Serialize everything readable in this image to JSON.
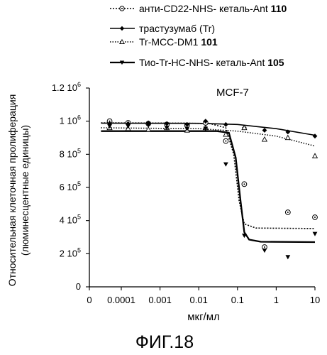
{
  "chart_data": {
    "type": "scatter",
    "panel_label": "MCF-7",
    "figure_caption": "ФИГ.18",
    "xlabel": "мкг/мл",
    "ylabel_line1": "Относительная клеточная пролиферация",
    "ylabel_line2": "(люминесцентные единицы)",
    "x_scale": "log",
    "x_ticks": [
      {
        "label": "0",
        "value": 1.5e-05
      },
      {
        "label": "0.0001",
        "value": 0.0001
      },
      {
        "label": "0.001",
        "value": 0.001
      },
      {
        "label": "0.01",
        "value": 0.01
      },
      {
        "label": "0.1",
        "value": 0.1
      },
      {
        "label": "1",
        "value": 1
      },
      {
        "label": "10",
        "value": 10
      }
    ],
    "ylim": [
      0,
      1200000
    ],
    "y_ticks": [
      {
        "mant": "0",
        "exp": "",
        "value": 0
      },
      {
        "mant": "2 10",
        "exp": "5",
        "value": 200000
      },
      {
        "mant": "4 10",
        "exp": "5",
        "value": 400000
      },
      {
        "mant": "6 10",
        "exp": "5",
        "value": 600000
      },
      {
        "mant": "8 10",
        "exp": "5",
        "value": 800000
      },
      {
        "mant": "1 10",
        "exp": "6",
        "value": 1000000
      },
      {
        "mant": "1.2 10",
        "exp": "6",
        "value": 1200000
      }
    ],
    "grid": false,
    "legend_position": "top",
    "series": [
      {
        "name": "анти-CD22-NHS- кеталь-Ant",
        "name_bold": "110",
        "marker": "circle-dot",
        "dash": "2,2",
        "points": [
          {
            "x": 5e-05,
            "y": 1000000
          },
          {
            "x": 0.00015,
            "y": 990000
          },
          {
            "x": 0.0005,
            "y": 985000
          },
          {
            "x": 0.0015,
            "y": 980000
          },
          {
            "x": 0.005,
            "y": 975000
          },
          {
            "x": 0.015,
            "y": 990000
          },
          {
            "x": 0.05,
            "y": 880000
          },
          {
            "x": 0.15,
            "y": 620000
          },
          {
            "x": 0.5,
            "y": 240000
          },
          {
            "x": 2,
            "y": 450000
          },
          {
            "x": 10,
            "y": 420000
          }
        ],
        "curve": [
          {
            "x": 3e-05,
            "y": 990000
          },
          {
            "x": 0.005,
            "y": 988000
          },
          {
            "x": 0.02,
            "y": 985000
          },
          {
            "x": 0.05,
            "y": 960000
          },
          {
            "x": 0.08,
            "y": 800000
          },
          {
            "x": 0.11,
            "y": 520000
          },
          {
            "x": 0.15,
            "y": 380000
          },
          {
            "x": 0.3,
            "y": 355000
          },
          {
            "x": 10,
            "y": 352000
          }
        ]
      },
      {
        "name": "трастузумаб (Tr)",
        "name_bold": "",
        "marker": "diamond",
        "dash": "",
        "points": [
          {
            "x": 5e-05,
            "y": 985000
          },
          {
            "x": 0.00015,
            "y": 985000
          },
          {
            "x": 0.0005,
            "y": 990000
          },
          {
            "x": 0.0015,
            "y": 985000
          },
          {
            "x": 0.005,
            "y": 980000
          },
          {
            "x": 0.015,
            "y": 1000000
          },
          {
            "x": 0.05,
            "y": 980000
          },
          {
            "x": 0.15,
            "y": 960000
          },
          {
            "x": 0.5,
            "y": 945000
          },
          {
            "x": 2,
            "y": 935000
          },
          {
            "x": 10,
            "y": 910000
          }
        ],
        "curve": [
          {
            "x": 3e-05,
            "y": 988000
          },
          {
            "x": 0.01,
            "y": 987000
          },
          {
            "x": 0.1,
            "y": 980000
          },
          {
            "x": 1,
            "y": 955000
          },
          {
            "x": 10,
            "y": 915000
          }
        ]
      },
      {
        "name": "Tr-MCC-DM1",
        "name_bold": "101",
        "marker": "triangle-up",
        "dash": "1.5,2",
        "points": [
          {
            "x": 5e-05,
            "y": 960000
          },
          {
            "x": 0.00015,
            "y": 955000
          },
          {
            "x": 0.0005,
            "y": 950000
          },
          {
            "x": 0.0015,
            "y": 960000
          },
          {
            "x": 0.005,
            "y": 945000
          },
          {
            "x": 0.015,
            "y": 960000
          },
          {
            "x": 0.05,
            "y": 920000
          },
          {
            "x": 0.15,
            "y": 960000
          },
          {
            "x": 0.5,
            "y": 890000
          },
          {
            "x": 2,
            "y": 900000
          },
          {
            "x": 10,
            "y": 790000
          }
        ],
        "curve": [
          {
            "x": 3e-05,
            "y": 960000
          },
          {
            "x": 0.01,
            "y": 955000
          },
          {
            "x": 0.1,
            "y": 940000
          },
          {
            "x": 1,
            "y": 910000
          },
          {
            "x": 10,
            "y": 850000
          }
        ]
      },
      {
        "name": "Тио-Tr-HC-NHS- кеталь-Ant",
        "name_bold": "105",
        "marker": "triangle-down",
        "dash": "",
        "points": [
          {
            "x": 5e-05,
            "y": 970000
          },
          {
            "x": 0.00015,
            "y": 970000
          },
          {
            "x": 0.0005,
            "y": 975000
          },
          {
            "x": 0.0015,
            "y": 960000
          },
          {
            "x": 0.005,
            "y": 955000
          },
          {
            "x": 0.015,
            "y": 955000
          },
          {
            "x": 0.05,
            "y": 740000
          },
          {
            "x": 0.15,
            "y": 310000
          },
          {
            "x": 0.5,
            "y": 220000
          },
          {
            "x": 2,
            "y": 180000
          },
          {
            "x": 10,
            "y": 320000
          }
        ],
        "curve": [
          {
            "x": 3e-05,
            "y": 940000
          },
          {
            "x": 0.03,
            "y": 940000
          },
          {
            "x": 0.06,
            "y": 930000
          },
          {
            "x": 0.09,
            "y": 780000
          },
          {
            "x": 0.12,
            "y": 520000
          },
          {
            "x": 0.15,
            "y": 330000
          },
          {
            "x": 0.2,
            "y": 285000
          },
          {
            "x": 0.4,
            "y": 272000
          },
          {
            "x": 10,
            "y": 270000
          }
        ]
      }
    ]
  }
}
